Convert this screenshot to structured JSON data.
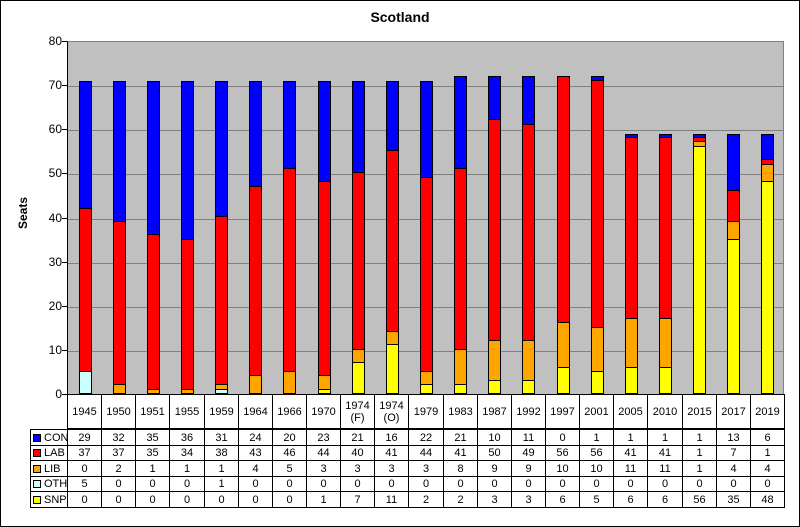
{
  "chart_data": {
    "type": "bar",
    "stacked": true,
    "title": "Scotland",
    "ylabel": "Seats",
    "ylim": [
      0,
      80
    ],
    "ytick_step": 10,
    "grid": true,
    "plot_bg_color": "#C0C0C0",
    "gridline_color": "#808080",
    "legend_position": "data-table-left",
    "categories": [
      "1945",
      "1950",
      "1951",
      "1955",
      "1959",
      "1964",
      "1966",
      "1970",
      "1974\n(F)",
      "1974\n(O)",
      "1979",
      "1983",
      "1987",
      "1992",
      "1997",
      "2001",
      "2005",
      "2010",
      "2015",
      "2017",
      "2019"
    ],
    "series": [
      {
        "name": "CON",
        "color": "#0000FF",
        "values": [
          29,
          32,
          35,
          36,
          31,
          24,
          20,
          23,
          21,
          16,
          22,
          21,
          10,
          11,
          0,
          1,
          1,
          1,
          1,
          13,
          6
        ]
      },
      {
        "name": "LAB",
        "color": "#FF0000",
        "values": [
          37,
          37,
          35,
          34,
          38,
          43,
          46,
          44,
          40,
          41,
          44,
          41,
          50,
          49,
          56,
          56,
          41,
          41,
          1,
          7,
          1
        ]
      },
      {
        "name": "LIB",
        "color": "#FFA500",
        "values": [
          0,
          2,
          1,
          1,
          1,
          4,
          5,
          3,
          3,
          3,
          3,
          8,
          9,
          9,
          10,
          10,
          11,
          11,
          1,
          4,
          4
        ]
      },
      {
        "name": "OTH",
        "color": "#CCFFFF",
        "values": [
          5,
          0,
          0,
          0,
          1,
          0,
          0,
          0,
          0,
          0,
          0,
          0,
          0,
          0,
          0,
          0,
          0,
          0,
          0,
          0,
          0
        ]
      },
      {
        "name": "SNP",
        "color": "#FFFF00",
        "values": [
          0,
          0,
          0,
          0,
          0,
          0,
          0,
          1,
          7,
          11,
          2,
          2,
          3,
          3,
          6,
          5,
          6,
          6,
          56,
          35,
          48
        ]
      }
    ],
    "stack_order_bottom_to_top": [
      "SNP",
      "OTH",
      "LIB",
      "LAB",
      "CON"
    ]
  }
}
